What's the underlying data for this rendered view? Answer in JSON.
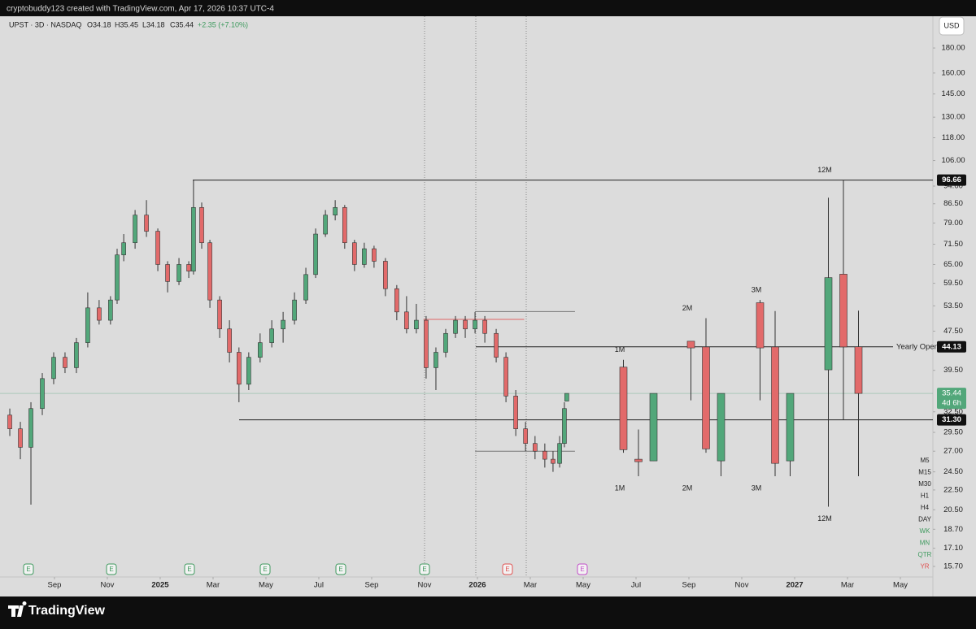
{
  "header": {
    "credit": "cryptobuddy123 created with TradingView.com, Apr 17, 2026 10:37 UTC-4",
    "symbol": "UPST · 3D · NASDAQ",
    "open": "O34.18",
    "high": "H35.45",
    "low": "L34.18",
    "close": "C35.44",
    "change": "+2.35 (+7.10%)",
    "currency": "USD"
  },
  "chart_data": {
    "type": "candlestick",
    "log_scale": true,
    "xlim": [
      -2.06,
      33.23
    ],
    "ylim": [
      14.94,
      209
    ],
    "xticks": [
      {
        "value": 0,
        "label": "Sep"
      },
      {
        "value": 2,
        "label": "Nov"
      },
      {
        "value": 4,
        "label": "2025"
      },
      {
        "value": 6,
        "label": "Mar"
      },
      {
        "value": 8,
        "label": "May"
      },
      {
        "value": 10,
        "label": "Jul"
      },
      {
        "value": 12,
        "label": "Sep"
      },
      {
        "value": 14,
        "label": "Nov"
      },
      {
        "value": 16,
        "label": "2026"
      },
      {
        "value": 18,
        "label": "Mar"
      },
      {
        "value": 20,
        "label": "May"
      },
      {
        "value": 22,
        "label": "Jul"
      },
      {
        "value": 24,
        "label": "Sep"
      },
      {
        "value": 26,
        "label": "Nov"
      },
      {
        "value": 28,
        "label": "2027"
      },
      {
        "value": 30,
        "label": "Mar"
      },
      {
        "value": 32,
        "label": "May"
      }
    ],
    "yticks": [
      {
        "value": 180,
        "label": "180.00"
      },
      {
        "value": 160,
        "label": "160.00"
      },
      {
        "value": 145,
        "label": "145.00"
      },
      {
        "value": 130,
        "label": "130.00"
      },
      {
        "value": 118,
        "label": "118.00"
      },
      {
        "value": 106,
        "label": "106.00"
      },
      {
        "value": 94,
        "label": "94.00"
      },
      {
        "value": 86.5,
        "label": "86.50"
      },
      {
        "value": 79,
        "label": "79.00"
      },
      {
        "value": 71.5,
        "label": "71.50"
      },
      {
        "value": 65,
        "label": "65.00"
      },
      {
        "value": 59.5,
        "label": "59.50"
      },
      {
        "value": 53.5,
        "label": "53.50"
      },
      {
        "value": 47.5,
        "label": "47.50"
      },
      {
        "value": 39.5,
        "label": "39.50"
      },
      {
        "value": 32.5,
        "label": "32.50"
      },
      {
        "value": 29.5,
        "label": "29.50"
      },
      {
        "value": 27,
        "label": "27.00"
      },
      {
        "value": 24.5,
        "label": "24.50"
      },
      {
        "value": 22.5,
        "label": "22.50"
      },
      {
        "value": 20.5,
        "label": "20.50"
      },
      {
        "value": 18.7,
        "label": "18.70"
      },
      {
        "value": 17.1,
        "label": "17.10"
      },
      {
        "value": 15.7,
        "label": "15.70"
      }
    ],
    "series": [
      {
        "up_color": "#52a77a",
        "down_color": "#e26a6a",
        "x": [
          -1.69,
          -1.29,
          -0.89,
          -0.46,
          -0.03,
          0.4,
          0.83,
          1.26,
          1.69,
          2.12,
          2.37,
          2.62,
          3.05,
          3.48,
          3.91,
          4.28,
          4.71,
          5.08,
          5.26,
          5.57,
          5.88,
          6.25,
          6.62,
          6.98,
          7.35,
          7.78,
          8.22,
          8.65,
          9.08,
          9.51,
          9.88,
          10.25,
          10.62,
          10.98,
          11.35,
          11.72,
          12.09,
          12.52,
          12.95,
          13.32,
          13.69,
          14.06,
          14.43,
          14.8,
          15.17,
          15.54,
          15.91,
          16.28,
          16.71,
          17.08,
          17.45,
          17.82,
          18.18,
          18.55,
          18.86,
          19.11,
          19.29,
          19.38
        ],
        "ohlc": [
          [
            32,
            33,
            29,
            30
          ],
          [
            30,
            31,
            26,
            27.5
          ],
          [
            27.5,
            34,
            21,
            33
          ],
          [
            33,
            39,
            32,
            38
          ],
          [
            38,
            43,
            37,
            42
          ],
          [
            42,
            43,
            39,
            40
          ],
          [
            40,
            46,
            39,
            45
          ],
          [
            45,
            57,
            44,
            53
          ],
          [
            53,
            55,
            49,
            50
          ],
          [
            50,
            56,
            49,
            55
          ],
          [
            55,
            70,
            54,
            68
          ],
          [
            68,
            75,
            66,
            72
          ],
          [
            72,
            84,
            70,
            82
          ],
          [
            82,
            88,
            74,
            76
          ],
          [
            76,
            77,
            63,
            65
          ],
          [
            65,
            66,
            57,
            60
          ],
          [
            60,
            67,
            59,
            65
          ],
          [
            65,
            66,
            61,
            63
          ],
          [
            63,
            96.66,
            62,
            85
          ],
          [
            85,
            87,
            70,
            72
          ],
          [
            72,
            73,
            53,
            55
          ],
          [
            55,
            56,
            46,
            48
          ],
          [
            48,
            50,
            41,
            43
          ],
          [
            43,
            44,
            34,
            37
          ],
          [
            37,
            43,
            36,
            42
          ],
          [
            42,
            47,
            41,
            45
          ],
          [
            45,
            50,
            44,
            48
          ],
          [
            48,
            52,
            45,
            50
          ],
          [
            50,
            57,
            49,
            55
          ],
          [
            55,
            64,
            54,
            62
          ],
          [
            62,
            77,
            61,
            75
          ],
          [
            75,
            84,
            74,
            82
          ],
          [
            82,
            88,
            80,
            85
          ],
          [
            85,
            86,
            70,
            72
          ],
          [
            72,
            73,
            63,
            65
          ],
          [
            65,
            72,
            64,
            70
          ],
          [
            70,
            71,
            64,
            66
          ],
          [
            66,
            67,
            56,
            58
          ],
          [
            58,
            59,
            50,
            52
          ],
          [
            52,
            56,
            47,
            48
          ],
          [
            48,
            54,
            47,
            50
          ],
          [
            50,
            51,
            38,
            40
          ],
          [
            40,
            44,
            36,
            43
          ],
          [
            43,
            48,
            42,
            47
          ],
          [
            47,
            51,
            46,
            50
          ],
          [
            50,
            51,
            46,
            48
          ],
          [
            48,
            52,
            47,
            50
          ],
          [
            50,
            51,
            45,
            47
          ],
          [
            47,
            48,
            41,
            42
          ],
          [
            42,
            43,
            34,
            35
          ],
          [
            35,
            36,
            29,
            30
          ],
          [
            30,
            31,
            27,
            28
          ],
          [
            28,
            29,
            26,
            27
          ],
          [
            27,
            28,
            25,
            26
          ],
          [
            26,
            27,
            24.5,
            25.5
          ],
          [
            25.5,
            29,
            25,
            28
          ],
          [
            28,
            34,
            27.5,
            33
          ],
          [
            34.18,
            35.45,
            34.18,
            35.44
          ]
        ]
      }
    ],
    "htf": [
      {
        "label": "1M",
        "candles": [
          [
            40.1,
            41.5,
            26.8,
            27.2
          ],
          [
            26,
            29.9,
            24,
            25.7
          ],
          [
            25.8,
            35.44,
            25.8,
            35.44
          ]
        ]
      },
      {
        "label": "2M",
        "candles": [
          [
            45.3,
            45.3,
            34.3,
            43.9
          ],
          [
            44.1,
            50.5,
            26.8,
            27.3
          ],
          [
            25.8,
            35.44,
            24,
            35.44
          ]
        ]
      },
      {
        "label": "3M",
        "candles": [
          [
            54.3,
            55,
            34.3,
            43.9
          ],
          [
            44.1,
            52.2,
            24,
            25.5
          ],
          [
            25.8,
            35.44,
            24,
            35.44
          ]
        ]
      },
      {
        "label": "12M",
        "candles": [
          [
            39.6,
            89,
            20.8,
            61.1
          ],
          [
            62.1,
            96.66,
            31.3,
            44.1
          ],
          [
            44.13,
            52.3,
            24,
            35.44
          ]
        ]
      }
    ],
    "levels": [
      {
        "value": 96.66,
        "label": "96.66"
      },
      {
        "value": 44.13,
        "label": "44.13",
        "name": "Yearly Open"
      },
      {
        "value": 31.3,
        "label": "31.30"
      }
    ],
    "ranges": [
      {
        "value": 50.2,
        "from": 13.96,
        "to": 17.77,
        "color": "#e06666"
      },
      {
        "value": 52.1,
        "from": 15.91,
        "to": 19.69,
        "color": "#777777"
      },
      {
        "value": 27,
        "from": 15.91,
        "to": 19.69,
        "color": "#777777"
      }
    ],
    "last_price": {
      "value": 35.44,
      "label": "35.44",
      "countdown": "4d 6h",
      "color": "#52a77a"
    },
    "earnings_marker": "E"
  },
  "timeframes": [
    {
      "label": "M5",
      "color": "#222222"
    },
    {
      "label": "M15",
      "color": "#222222"
    },
    {
      "label": "M30",
      "color": "#222222"
    },
    {
      "label": "H1",
      "color": "#222222"
    },
    {
      "label": "H4",
      "color": "#222222"
    },
    {
      "label": "DAY",
      "color": "#222222"
    },
    {
      "label": "WK",
      "color": "#3e9a5e"
    },
    {
      "label": "MN",
      "color": "#3e9a5e"
    },
    {
      "label": "QTR",
      "color": "#3e9a5e"
    },
    {
      "label": "YR",
      "color": "#e0504f"
    }
  ],
  "footer": {
    "brand": "TradingView"
  }
}
